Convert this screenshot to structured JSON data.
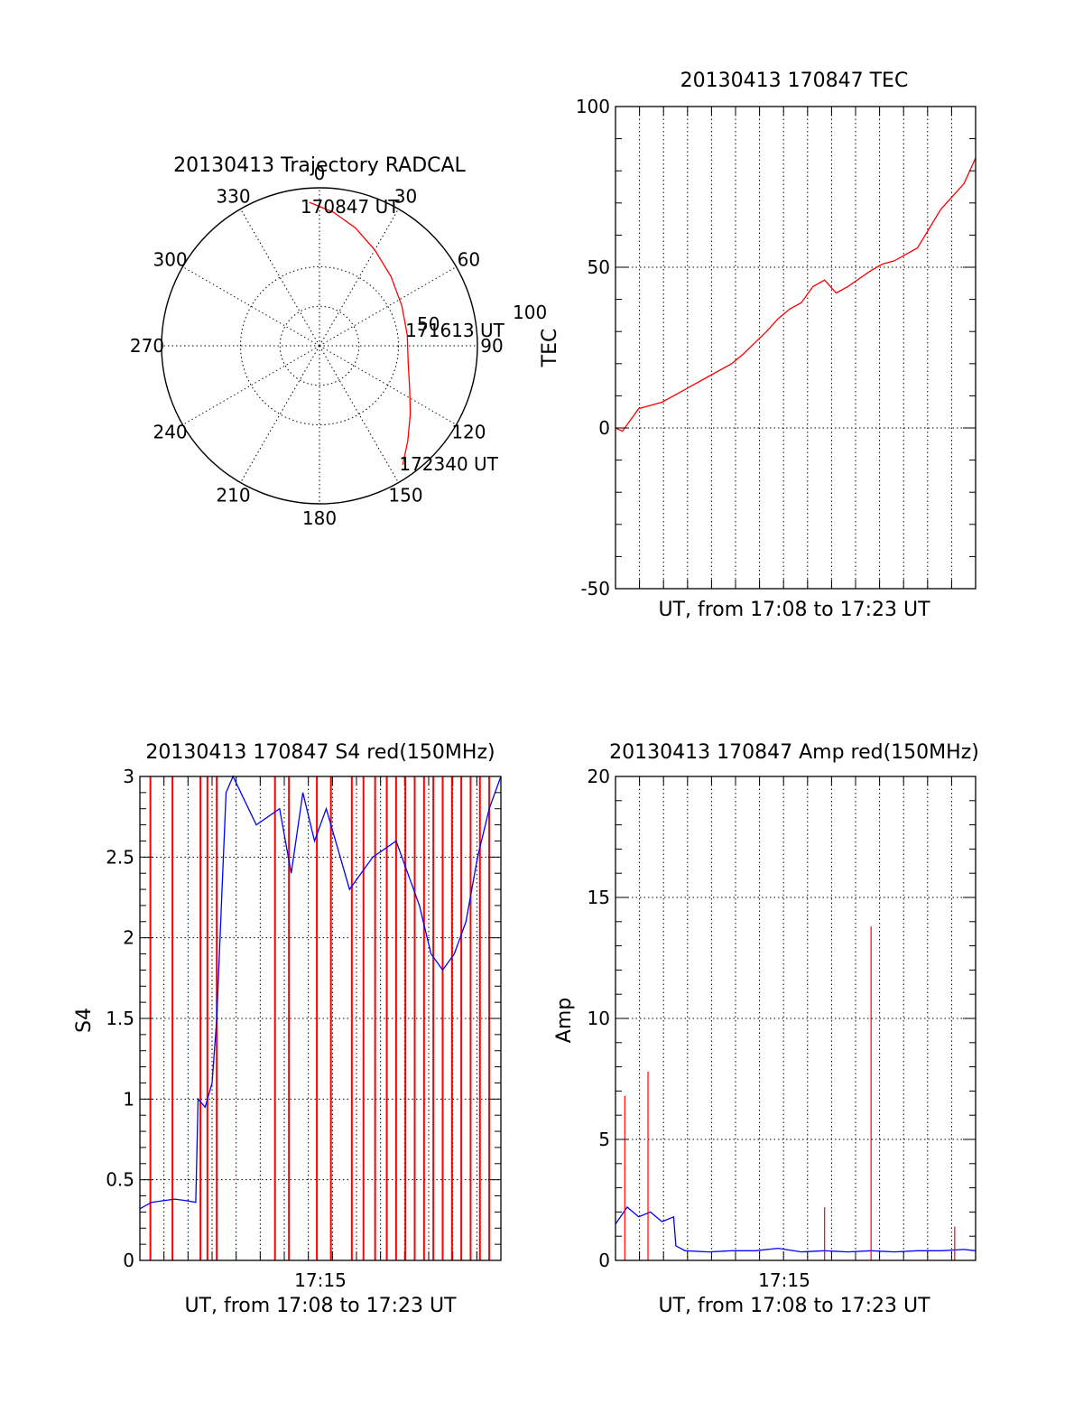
{
  "chart_data": [
    {
      "type": "polar",
      "title": "20130413 Trajectory RADCAL",
      "azimuth_labels": [
        "0",
        "30",
        "60",
        "90",
        "120",
        "150",
        "180",
        "210",
        "240",
        "270",
        "300",
        "330"
      ],
      "elevation_ring_labels": [
        "50",
        "100"
      ],
      "elevation_range": [
        0,
        100
      ],
      "grid": true,
      "series": [
        {
          "color": "#ff0000",
          "points": [
            {
              "az": 356,
              "zen": 91
            },
            {
              "az": 6,
              "zen": 85
            },
            {
              "az": 17,
              "zen": 78
            },
            {
              "az": 30,
              "zen": 70
            },
            {
              "az": 46,
              "zen": 63
            },
            {
              "az": 64,
              "zen": 58
            },
            {
              "az": 83,
              "zen": 56
            },
            {
              "az": 100,
              "zen": 57
            },
            {
              "az": 115,
              "zen": 63
            },
            {
              "az": 127,
              "zen": 72
            },
            {
              "az": 137,
              "zen": 82
            },
            {
              "az": 145,
              "zen": 92
            }
          ]
        }
      ],
      "annotations": [
        {
          "text": "170847 UT",
          "az": 356,
          "zen": 91
        },
        {
          "text": "171613 UT",
          "az": 83,
          "zen": 56
        },
        {
          "text": "172340 UT",
          "az": 145,
          "zen": 92
        }
      ]
    },
    {
      "type": "line",
      "title": "20130413 170847 TEC",
      "xlabel": "UT, from 17:08 to 17:23 UT",
      "ylabel": "TEC",
      "ylim": [
        -50,
        100
      ],
      "yticks": [
        "-50",
        "0",
        "50",
        "100"
      ],
      "xlim": [
        0,
        15.5
      ],
      "grid": true,
      "series": [
        {
          "color": "#ff0000",
          "x": [
            0,
            0.3,
            1,
            2,
            3,
            4,
            5,
            5.5,
            6.5,
            7,
            7.5,
            8,
            8.5,
            9,
            9.5,
            10,
            11,
            11.5,
            12,
            13,
            14,
            15,
            15.5
          ],
          "y": [
            0,
            -1,
            6,
            8,
            12,
            16,
            20,
            23,
            30,
            34,
            37,
            39,
            44,
            46,
            42,
            44,
            49,
            51,
            52,
            56,
            68,
            76,
            84
          ]
        }
      ]
    },
    {
      "type": "line",
      "title": "20130413 170847 S4 red(150MHz)",
      "xlabel": "UT, from 17:08 to 17:23 UT",
      "ylabel": "S4",
      "ylim": [
        0,
        3
      ],
      "yticks": [
        "0",
        "0.5",
        "1",
        "1.5",
        "2",
        "2.5",
        "3"
      ],
      "xticks": [
        "17:15"
      ],
      "xlim": [
        0,
        15.5
      ],
      "grid": true,
      "series": [
        {
          "color": "#0000ff",
          "x": [
            0,
            0.5,
            1,
            1.5,
            2,
            2.4,
            2.5,
            2.8,
            3.1,
            3.3,
            3.5,
            3.7,
            4,
            5,
            6,
            6.5,
            7,
            7.5,
            8,
            9,
            10,
            11,
            11.5,
            12,
            12.5,
            13,
            13.5,
            14,
            14.5,
            15,
            15.5
          ],
          "y": [
            0.32,
            0.36,
            0.37,
            0.38,
            0.37,
            0.36,
            1.0,
            0.95,
            1.1,
            1.5,
            2.2,
            2.9,
            3,
            2.7,
            2.8,
            2.4,
            2.9,
            2.6,
            2.8,
            2.3,
            2.5,
            2.6,
            2.4,
            2.2,
            1.9,
            1.8,
            1.9,
            2.1,
            2.5,
            2.8,
            3
          ]
        },
        {
          "color": "#ff0000",
          "spikes_x": [
            0.45,
            1.4,
            2.6,
            2.9,
            3.3,
            5.8,
            6.4,
            7.6,
            8.2,
            9.1,
            9.6,
            10.1,
            10.6,
            11.0,
            11.4,
            11.8,
            12.2,
            12.6,
            13.0,
            13.4,
            13.8,
            14.2,
            14.6,
            15.0
          ],
          "spike_top": 3
        }
      ]
    },
    {
      "type": "line",
      "title": "20130413 170847 Amp red(150MHz)",
      "xlabel": "UT, from 17:08 to 17:23 UT",
      "ylabel": "Amp",
      "ylim": [
        0,
        20
      ],
      "yticks": [
        "0",
        "5",
        "10",
        "15",
        "20"
      ],
      "xticks": [
        "17:15"
      ],
      "xlim": [
        0,
        15.5
      ],
      "grid": true,
      "series": [
        {
          "color": "#0000ff",
          "x": [
            0,
            0.5,
            1,
            1.5,
            2,
            2.5,
            2.6,
            3,
            4,
            5,
            6,
            7,
            8,
            9,
            10,
            11,
            12,
            13,
            14,
            15,
            15.5
          ],
          "y": [
            1.5,
            2.2,
            1.8,
            2.0,
            1.6,
            1.8,
            0.6,
            0.4,
            0.35,
            0.4,
            0.4,
            0.5,
            0.35,
            0.4,
            0.35,
            0.4,
            0.35,
            0.4,
            0.4,
            0.45,
            0.4
          ]
        },
        {
          "color": "#ff0000",
          "spikes": [
            {
              "x": 0.4,
              "y": 6.8
            },
            {
              "x": 1.4,
              "y": 7.8
            },
            {
              "x": 9.0,
              "y": 2.2
            },
            {
              "x": 11.0,
              "y": 13.8
            },
            {
              "x": 14.6,
              "y": 1.4
            }
          ]
        }
      ]
    }
  ]
}
